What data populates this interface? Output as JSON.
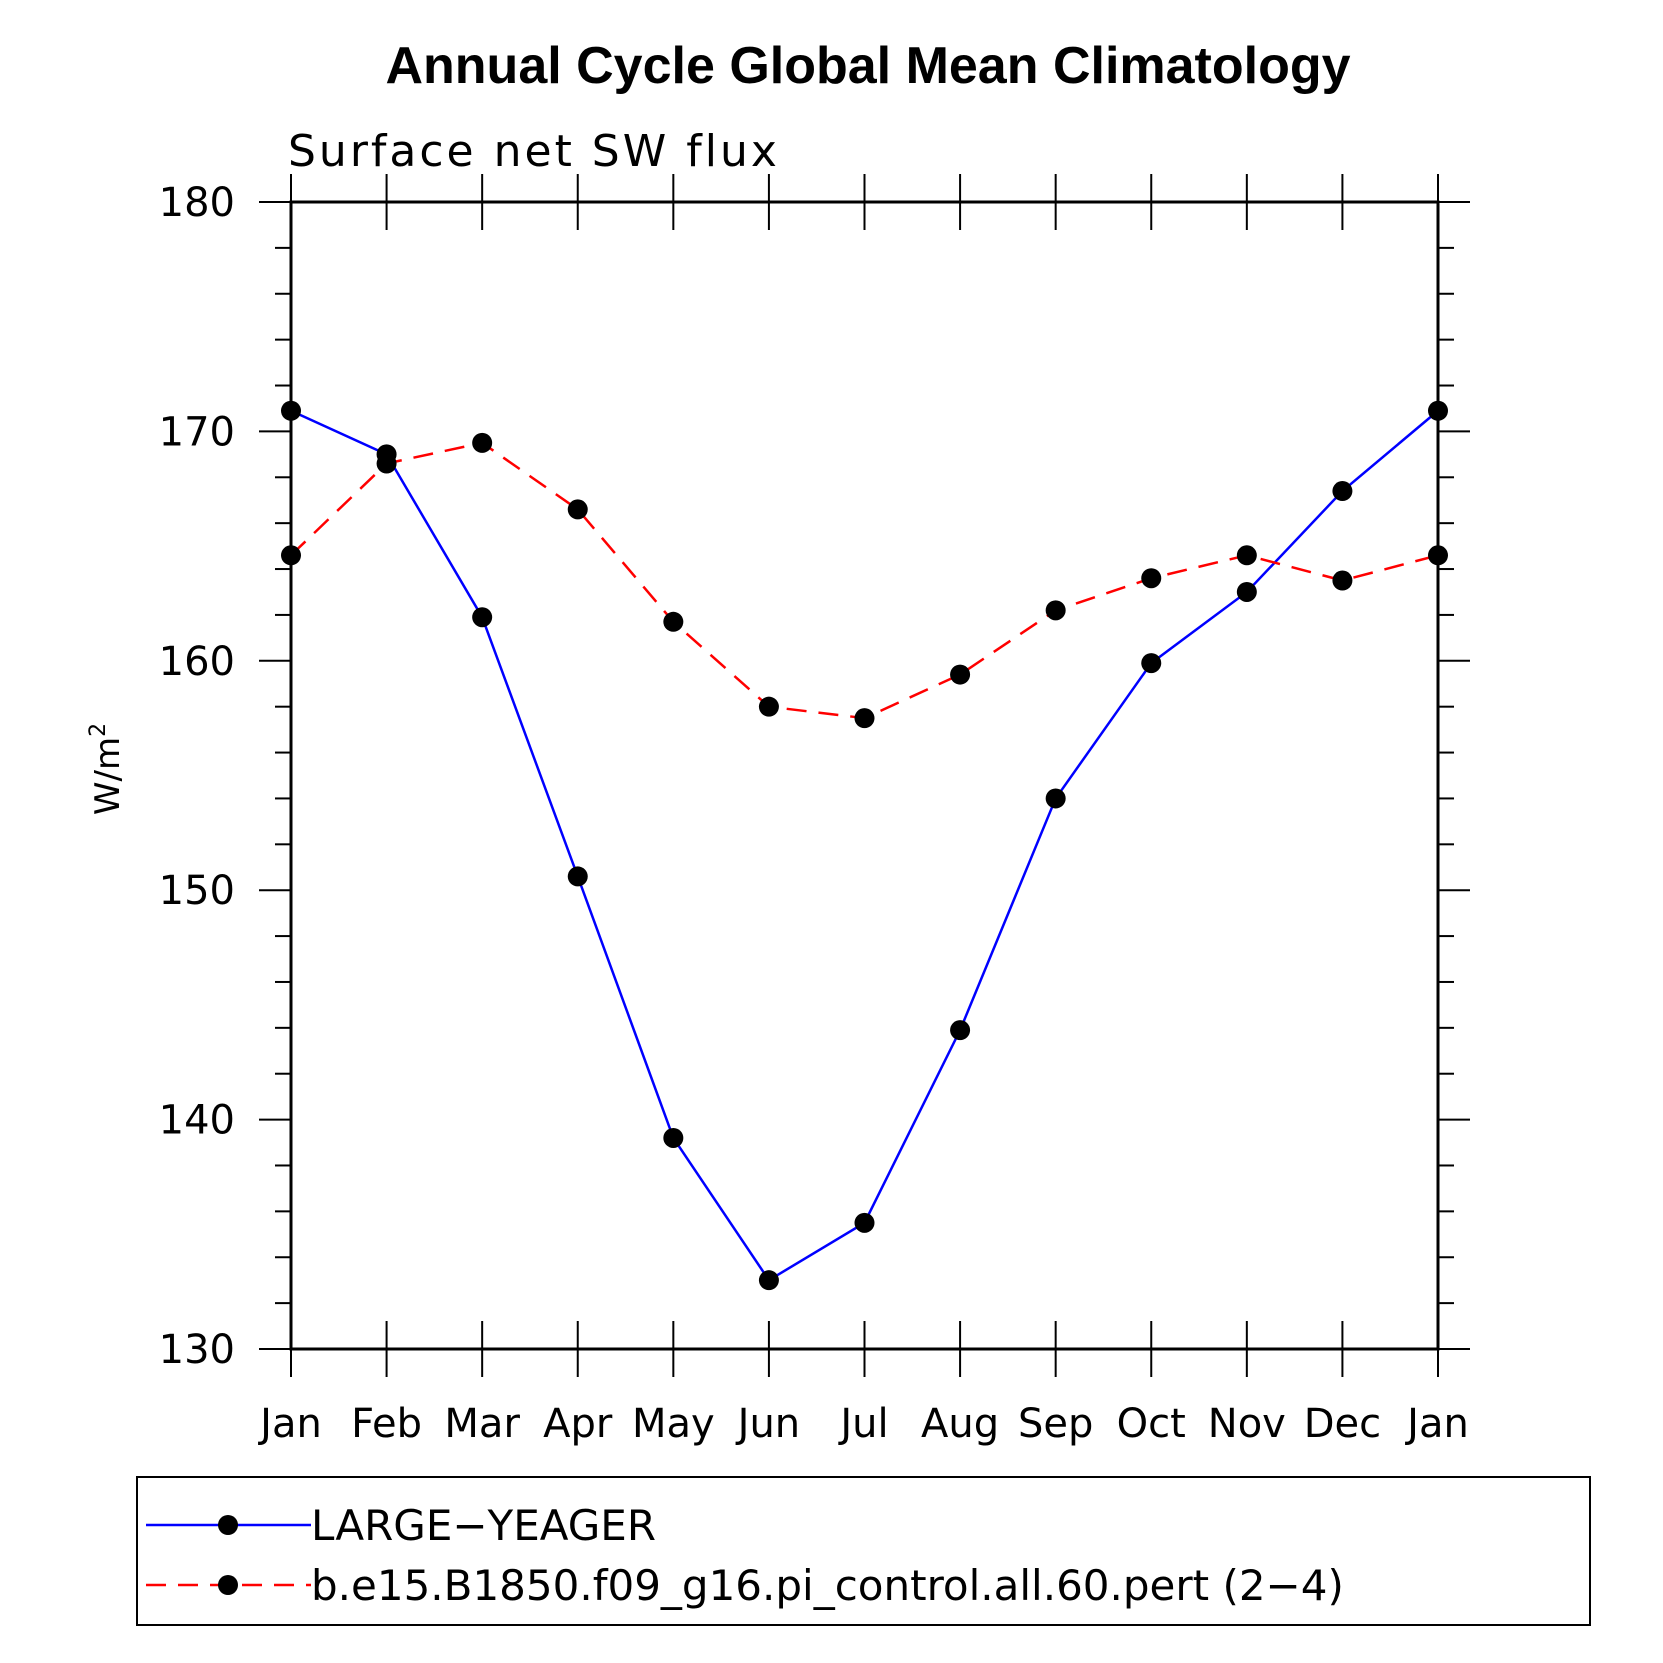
{
  "chart_data": {
    "type": "line",
    "title": "Annual Cycle Global Mean Climatology",
    "subtitle": "Surface net SW flux",
    "ylabel": "W/m",
    "ylabel_superscript": "2",
    "xlabel": "",
    "categories": [
      "Jan",
      "Feb",
      "Mar",
      "Apr",
      "May",
      "Jun",
      "Jul",
      "Aug",
      "Sep",
      "Oct",
      "Nov",
      "Dec",
      "Jan"
    ],
    "ylim": [
      130,
      180
    ],
    "yticks": [
      130,
      140,
      150,
      160,
      170,
      180
    ],
    "y_minor_step": 2,
    "grid": false,
    "legend_position": "bottom",
    "series": [
      {
        "name": "LARGE−YEAGER",
        "color": "#0000ff",
        "line_style": "solid",
        "marker": "filled-circle",
        "values": [
          170.9,
          169.0,
          161.9,
          150.6,
          139.2,
          133.0,
          135.5,
          143.9,
          154.0,
          159.9,
          163.0,
          167.4,
          170.9
        ]
      },
      {
        "name": "b.e15.B1850.f09_g16.pi_control.all.60.pert (2−4)",
        "color": "#ff0000",
        "line_style": "dashed",
        "marker": "filled-circle",
        "values": [
          164.6,
          168.6,
          169.5,
          166.6,
          161.7,
          158.0,
          157.5,
          159.4,
          162.2,
          163.6,
          164.6,
          163.5,
          164.6
        ]
      }
    ]
  }
}
